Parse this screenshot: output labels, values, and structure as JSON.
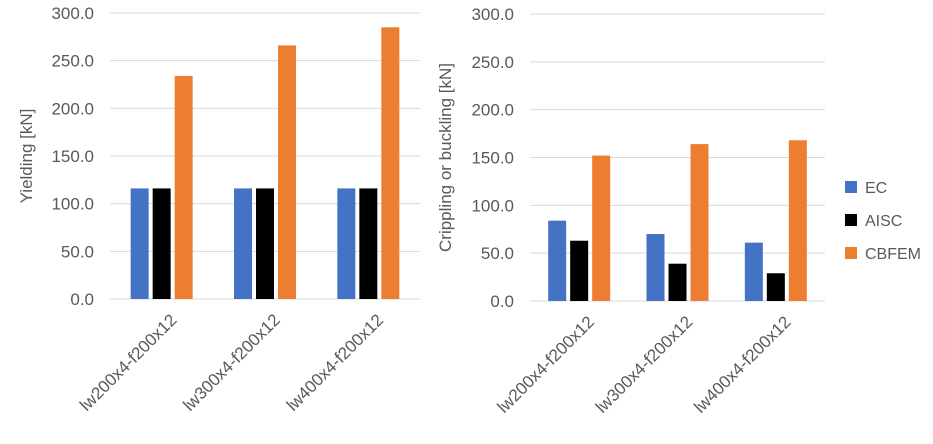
{
  "legend": {
    "items": [
      {
        "label": "EC",
        "color": "#4472C4"
      },
      {
        "label": "AISC",
        "color": "#000000"
      },
      {
        "label": "CBFEM",
        "color": "#ED7D31"
      }
    ],
    "placement": "right"
  },
  "chart_data": [
    {
      "type": "bar",
      "title": "",
      "xlabel": "",
      "ylabel": "Yielding [kN]",
      "ylim": [
        0,
        300
      ],
      "yticks": [
        "0.0",
        "50.0",
        "100.0",
        "150.0",
        "200.0",
        "250.0",
        "300.0"
      ],
      "grid": true,
      "categories": [
        "lw200x4-f200x12",
        "lw300x4-f200x12",
        "lw400x4-f200x12"
      ],
      "series": [
        {
          "name": "EC",
          "color": "#4472C4",
          "values": [
            116,
            116,
            116
          ]
        },
        {
          "name": "AISC",
          "color": "#000000",
          "values": [
            116,
            116,
            116
          ]
        },
        {
          "name": "CBFEM",
          "color": "#ED7D31",
          "values": [
            234,
            266,
            285
          ]
        }
      ]
    },
    {
      "type": "bar",
      "title": "",
      "xlabel": "",
      "ylabel": "Crippling or buckling [kN]",
      "ylim": [
        0,
        300
      ],
      "yticks": [
        "0.0",
        "50.0",
        "100.0",
        "150.0",
        "200.0",
        "250.0",
        "300.0"
      ],
      "grid": true,
      "categories": [
        "lw200x4-f200x12",
        "lw300x4-f200x12",
        "lw400x4-f200x12"
      ],
      "series": [
        {
          "name": "EC",
          "color": "#4472C4",
          "values": [
            84,
            70,
            61
          ]
        },
        {
          "name": "AISC",
          "color": "#000000",
          "values": [
            63,
            39,
            29
          ]
        },
        {
          "name": "CBFEM",
          "color": "#ED7D31",
          "values": [
            152,
            164,
            168
          ]
        }
      ]
    }
  ]
}
